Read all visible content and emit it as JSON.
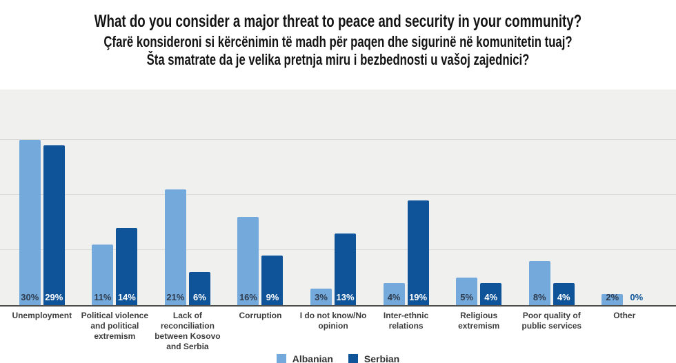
{
  "title": {
    "en": "What do you consider a major threat to peace and security in your community?",
    "sq": "Çfarë konsideroni si kërcënimin të madh për paqen dhe sigurinë në komunitetin tuaj?",
    "sr": "Šta smatrate da je velika pretnja miru i bezbednosti u vašoj zajednici?"
  },
  "chart_data": {
    "type": "bar",
    "categories": [
      "Unemployment",
      "Political violence and political extremism",
      "Lack of reconciliation between Kosovo and Serbia",
      "Corruption",
      "I do not know/No opinion",
      "Inter-ethnic relations",
      "Religious extremism",
      "Poor quality of public services",
      "Other"
    ],
    "series": [
      {
        "name": "Albanian",
        "color": "#74a9dc",
        "values": [
          30,
          11,
          21,
          16,
          3,
          4,
          5,
          8,
          2
        ]
      },
      {
        "name": "Serbian",
        "color": "#0f5499",
        "values": [
          29,
          14,
          6,
          9,
          13,
          19,
          4,
          4,
          0
        ]
      }
    ],
    "value_suffix": "%",
    "xlabel": "",
    "ylabel": "",
    "ylim": [
      0,
      40
    ],
    "gridline_values": [
      10,
      20,
      30
    ],
    "grid": true,
    "legend_position": "bottom",
    "plot_background": "#f0f0ee",
    "axis_color": "#4d4d4d"
  }
}
